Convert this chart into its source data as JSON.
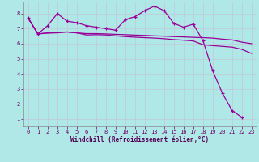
{
  "xlabel": "Windchill (Refroidissement éolien,°C)",
  "line_color": "#990099",
  "bg_color": "#b0e8e8",
  "grid_color": "#c0c8d8",
  "xlim": [
    -0.5,
    23.5
  ],
  "ylim": [
    0.5,
    8.8
  ],
  "xticks": [
    0,
    1,
    2,
    3,
    4,
    5,
    6,
    7,
    8,
    9,
    10,
    11,
    12,
    13,
    14,
    15,
    16,
    17,
    18,
    19,
    20,
    21,
    22,
    23
  ],
  "yticks": [
    1,
    2,
    3,
    4,
    5,
    6,
    7,
    8
  ],
  "line1_y": [
    7.7,
    6.65,
    6.72,
    6.75,
    6.78,
    6.72,
    6.67,
    6.67,
    6.65,
    6.62,
    6.6,
    6.57,
    6.55,
    6.52,
    6.5,
    6.47,
    6.45,
    6.42,
    6.4,
    6.37,
    6.3,
    6.25,
    6.1,
    6.0
  ],
  "line2_y": [
    7.7,
    6.65,
    7.2,
    8.0,
    7.5,
    7.4,
    7.2,
    7.1,
    7.0,
    6.9,
    7.6,
    7.8,
    8.2,
    8.5,
    8.2,
    7.35,
    7.1,
    7.3,
    6.2,
    4.2,
    2.7,
    1.55,
    1.1,
    null
  ],
  "line3_y": [
    7.7,
    6.65,
    6.7,
    6.72,
    6.78,
    6.72,
    6.58,
    6.6,
    6.58,
    6.52,
    6.47,
    6.43,
    6.4,
    6.37,
    6.33,
    6.27,
    6.23,
    6.18,
    5.93,
    5.87,
    5.82,
    5.77,
    5.62,
    5.35
  ],
  "tick_fontsize": 5.0,
  "xlabel_fontsize": 5.5
}
